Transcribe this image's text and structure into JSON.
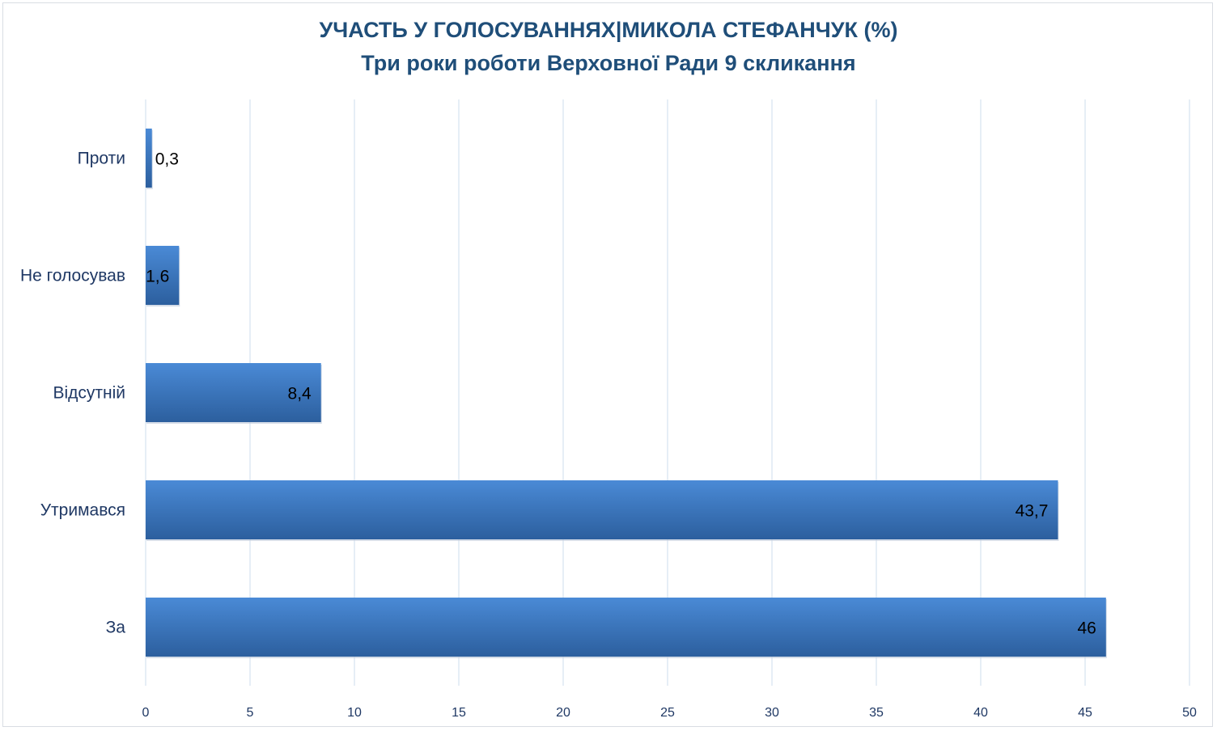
{
  "chart_data": {
    "type": "bar",
    "orientation": "horizontal",
    "title": "УЧАСТЬ У ГОЛОСУВАННЯХ|МИКОЛА  СТЕФАНЧУК (%)",
    "subtitle": "Три роки роботи Верховної Ради 9 скликання",
    "categories": [
      "Проти",
      "Не голосував",
      "Відсутній",
      "Утримався",
      "За"
    ],
    "values": [
      0.3,
      1.6,
      8.4,
      43.7,
      46
    ],
    "data_labels": [
      "0,3",
      "1,6",
      "8,4",
      "43,7",
      "46"
    ],
    "xlim": [
      0,
      50
    ],
    "xticks": [
      0,
      5,
      10,
      15,
      20,
      25,
      30,
      35,
      40,
      45,
      50
    ],
    "xlabel": "",
    "ylabel": "",
    "grid": "vertical",
    "legend": "none",
    "colors": {
      "bar_top": "#4a8ad6",
      "bar_bottom": "#2c5f9e",
      "title": "#1f4e79",
      "grid": "#d6e3f1"
    }
  }
}
